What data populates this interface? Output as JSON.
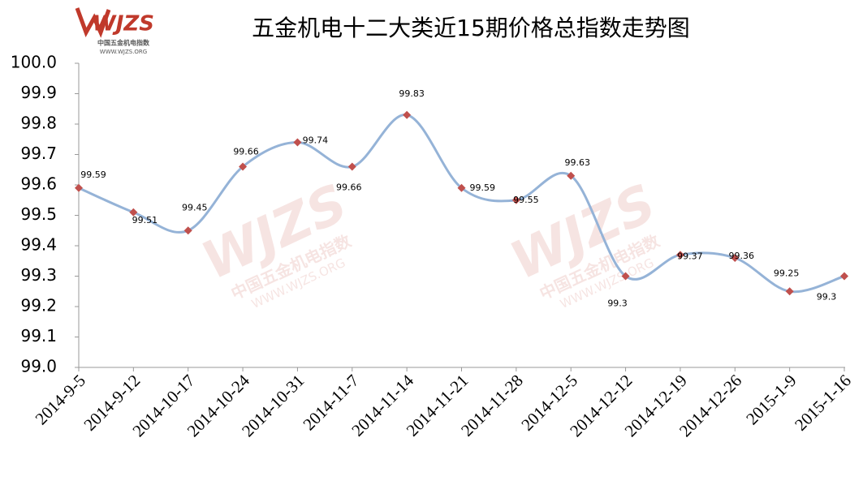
{
  "logo": {
    "brand": "WJZS",
    "name": "中国五金机电指数",
    "url": "WWW.WJZS.ORG"
  },
  "chart_data": {
    "type": "line",
    "title": "五金机电十二大类近15期价格总指数走势图",
    "categories": [
      "2014-9-5",
      "2014-9-12",
      "2014-10-17",
      "2014-10-24",
      "2014-10-31",
      "2014-11-7",
      "2014-11-14",
      "2014-11-21",
      "2014-11-28",
      "2014-12-5",
      "2014-12-12",
      "2014-12-19",
      "2014-12-26",
      "2015-1-9",
      "2015-1-16"
    ],
    "series": [
      {
        "color": "#95b3d7",
        "marker_color": "#c0504d",
        "values": [
          99.59,
          99.51,
          99.45,
          99.66,
          99.74,
          99.66,
          99.83,
          99.59,
          99.55,
          99.63,
          99.3,
          99.37,
          99.36,
          99.25,
          99.3
        ]
      }
    ],
    "ylim": [
      99.0,
      100.0
    ],
    "yticks": [
      {
        "value": 99.0,
        "label": "99.0"
      },
      99.1,
      99.2,
      99.3,
      99.4,
      99.5,
      99.6,
      99.7,
      99.8,
      99.9,
      {
        "value": 100.0,
        "label": "100.0"
      }
    ],
    "grid": false
  }
}
